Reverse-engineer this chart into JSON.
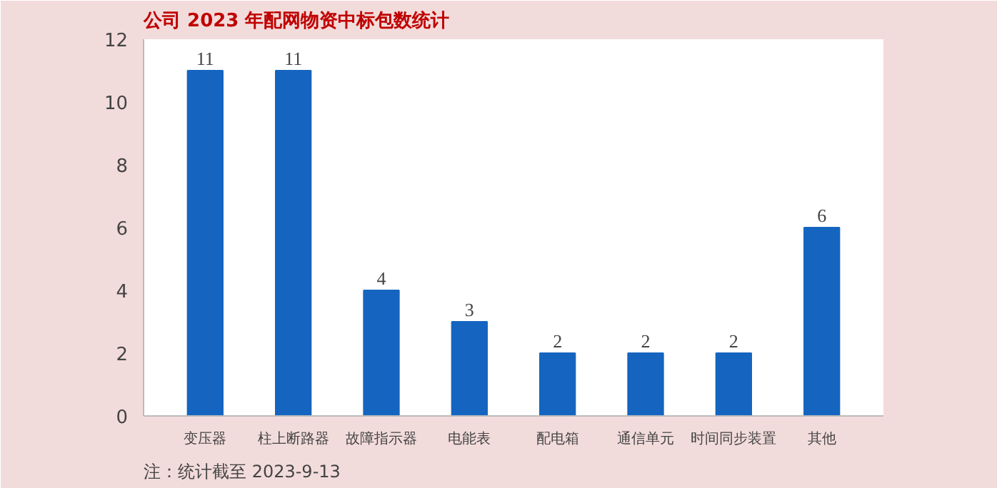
{
  "chart_data": {
    "type": "bar",
    "title": "公司 2023 年配网物资中标包数统计",
    "categories": [
      "变压器",
      "柱上断路器",
      "故障指示器",
      "电能表",
      "配电箱",
      "通信单元",
      "时间同步装置",
      "其他"
    ],
    "values": [
      11,
      11,
      4,
      3,
      2,
      2,
      2,
      6
    ],
    "color": "#1565c0",
    "ylim": [
      0,
      12
    ],
    "yticks": [
      0,
      2,
      4,
      6,
      8,
      10,
      12
    ],
    "grid": false,
    "data_labels": true,
    "annotations": [
      "注：统计截至 2023-9-13"
    ]
  }
}
